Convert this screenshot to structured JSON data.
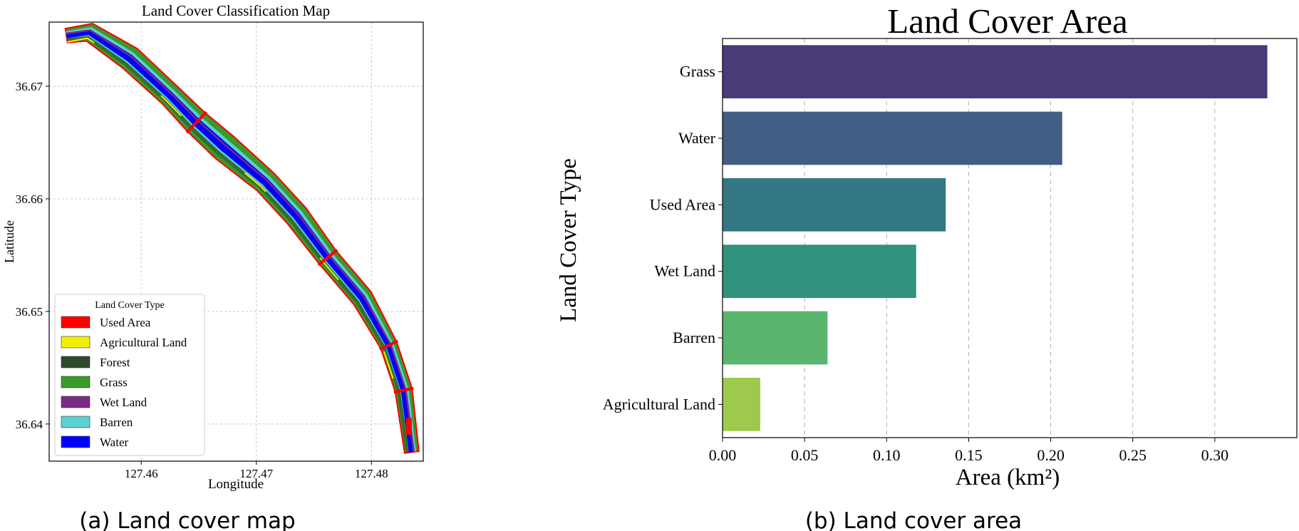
{
  "panels": {
    "a_caption": "(a) Land cover map",
    "b_caption": "(b) Land cover area"
  },
  "chart_data": [
    {
      "type": "map",
      "title": "Land Cover Classification Map",
      "xlabel": "Longitude",
      "ylabel": "Latitude",
      "xlim": [
        127.452,
        127.4845
      ],
      "ylim": [
        36.6367,
        36.6757
      ],
      "xticks": [
        "127.46",
        "127.47",
        "127.48"
      ],
      "xtick_values": [
        127.46,
        127.47,
        127.48
      ],
      "yticks": [
        "36.67",
        "36.66",
        "36.65",
        "36.64"
      ],
      "ytick_values": [
        36.67,
        36.66,
        36.65,
        36.64
      ],
      "grid": true,
      "legend": {
        "title": "Land Cover Type",
        "placement": "lower-left",
        "entries": [
          {
            "label": "Used Area",
            "color": "#ff0000"
          },
          {
            "label": "Agricultural Land",
            "color": "#f0f000"
          },
          {
            "label": "Forest",
            "color": "#2d4a2d"
          },
          {
            "label": "Grass",
            "color": "#3a9a2a"
          },
          {
            "label": "Wet Land",
            "color": "#7b2a86"
          },
          {
            "label": "Barren",
            "color": "#5bd0d0"
          },
          {
            "label": "Water",
            "color": "#0000ff"
          }
        ]
      },
      "river_centerline": [
        [
          127.4535,
          36.6745
        ],
        [
          127.4555,
          36.6748
        ],
        [
          127.459,
          36.6725
        ],
        [
          127.4625,
          36.6692
        ],
        [
          127.4648,
          36.6668
        ],
        [
          127.4672,
          36.6646
        ],
        [
          127.4708,
          36.6615
        ],
        [
          127.4735,
          36.6585
        ],
        [
          127.4762,
          36.6548
        ],
        [
          127.4792,
          36.6512
        ],
        [
          127.4815,
          36.647
        ],
        [
          127.4828,
          36.643
        ],
        [
          127.4835,
          36.6375
        ]
      ]
    },
    {
      "type": "bar",
      "orientation": "horizontal",
      "title": "Land Cover Area",
      "xlabel": "Area (km²)",
      "ylabel": "Land Cover Type",
      "categories": [
        "Grass",
        "Water",
        "Used Area",
        "Wet Land",
        "Barren",
        "Agricultural Land"
      ],
      "values": [
        0.332,
        0.207,
        0.136,
        0.118,
        0.064,
        0.023
      ],
      "colors": [
        "#4a3a78",
        "#405e84",
        "#337784",
        "#2f937e",
        "#5ab56e",
        "#9dc94c"
      ],
      "xlim": [
        0,
        0.35
      ],
      "xticks": [
        "0.00",
        "0.05",
        "0.10",
        "0.15",
        "0.20",
        "0.25",
        "0.30"
      ],
      "xtick_values": [
        0,
        0.05,
        0.1,
        0.15,
        0.2,
        0.25,
        0.3
      ],
      "grid": true
    }
  ]
}
